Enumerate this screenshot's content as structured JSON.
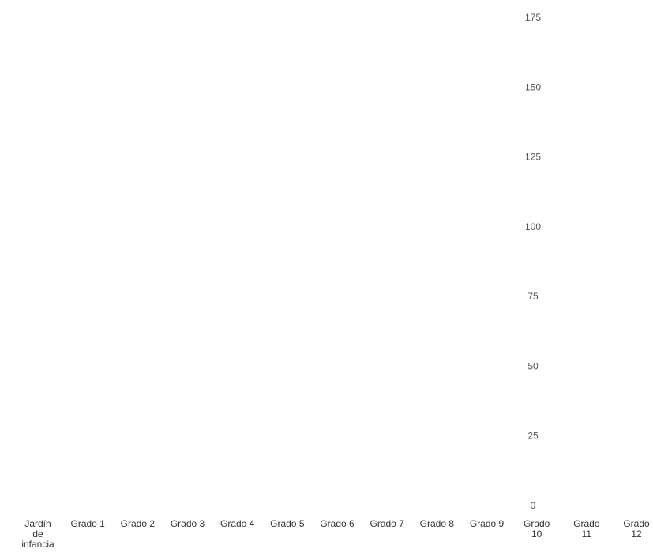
{
  "chart_data": {
    "type": "bar",
    "title": "",
    "xlabel": "",
    "ylabel": "",
    "ylim": [
      0,
      175
    ],
    "yticks": [
      0,
      25,
      50,
      75,
      100,
      125,
      150,
      175
    ],
    "categories": [
      [
        "Jardín",
        "de",
        "infancia"
      ],
      [
        "Grado 1"
      ],
      [
        "Grado 2"
      ],
      [
        "Grado 3"
      ],
      [
        "Grado 4"
      ],
      [
        "Grado 5"
      ],
      [
        "Grado 6"
      ],
      [
        "Grado 7"
      ],
      [
        "Grado 8"
      ],
      [
        "Grado 9"
      ],
      [
        "Grado",
        "10"
      ],
      [
        "Grado",
        "11"
      ],
      [
        "Grado",
        "12"
      ]
    ],
    "series": [],
    "grid": false,
    "colors": {
      "tick_text": "#555555",
      "category_text": "#333333",
      "background": "#ffffff"
    }
  }
}
